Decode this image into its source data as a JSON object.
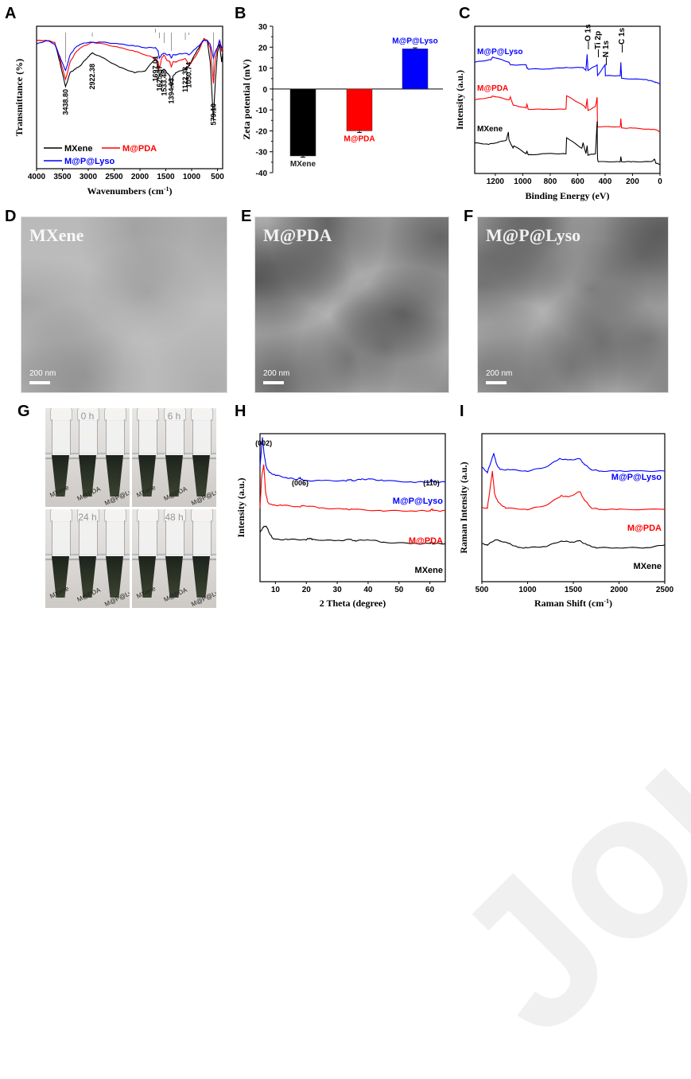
{
  "figure": {
    "panel_labels": [
      "A",
      "B",
      "C",
      "D",
      "E",
      "F",
      "G",
      "H",
      "I"
    ],
    "watermark": "Journal Pre-proof",
    "colors": {
      "MXene": "#000000",
      "M@PDA": "#ff0000",
      "M@P@Lyso": "#0000ff"
    }
  },
  "chart_data": [
    {
      "panel": "A",
      "type": "line",
      "title": "",
      "xlabel": "Wavenumbers (cm-1)",
      "xlabel_main": "Wavenumbers (cm",
      "xlabel_sup": "-1",
      "xlabel_end": ")",
      "ylabel": "Transmittance (%)",
      "xlim": [
        4000,
        400
      ],
      "xticks": [
        "4000",
        "3500",
        "3000",
        "2500",
        "2000",
        "1500",
        "1000",
        "500"
      ],
      "legend": [
        "MXene",
        "M@PDA",
        "M@P@Lyso"
      ],
      "legend_placement": "bottom-left",
      "annotations": [
        "3438.80",
        "2922.38",
        "1697.01",
        "1625.37",
        "1533.48",
        "1394.03",
        "1122.38",
        "1050.74",
        "579.10"
      ],
      "annotation_x": [
        3438.8,
        2922.38,
        1697.01,
        1625.37,
        1533.48,
        1394.03,
        1122.38,
        1050.74,
        579.1
      ],
      "series": [
        {
          "name": "MXene",
          "x": [
            4000,
            3800,
            3650,
            3550,
            3440,
            3350,
            3250,
            3150,
            3000,
            2922,
            2700,
            2400,
            2100,
            1900,
            1697,
            1650,
            1625,
            1580,
            1533,
            1480,
            1420,
            1394,
            1360,
            1300,
            1122,
            1050,
            900,
            760,
            700,
            640,
            579,
            540,
            500,
            460,
            420,
            400
          ],
          "y": [
            92,
            92,
            91,
            80,
            66,
            74,
            76,
            78,
            83,
            85,
            82,
            77,
            74,
            75,
            82,
            78,
            72,
            75,
            76,
            74,
            72,
            65,
            72,
            74,
            76,
            78,
            86,
            93,
            92,
            80,
            47,
            70,
            85,
            90,
            80,
            85
          ]
        },
        {
          "name": "M@PDA",
          "x": [
            4000,
            3800,
            3650,
            3550,
            3440,
            3350,
            3250,
            3150,
            3000,
            2922,
            2700,
            2400,
            2100,
            1900,
            1697,
            1650,
            1625,
            1580,
            1533,
            1480,
            1420,
            1394,
            1360,
            1300,
            1122,
            1050,
            900,
            760,
            700,
            640,
            579,
            540,
            500,
            460,
            420,
            400
          ],
          "y": [
            92,
            92,
            91,
            82,
            70,
            80,
            85,
            88,
            90,
            91,
            90,
            88,
            86,
            84,
            82,
            80,
            76,
            82,
            84,
            81,
            80,
            77,
            80,
            80,
            82,
            78,
            84,
            93,
            92,
            88,
            68,
            82,
            88,
            92,
            86,
            88
          ]
        },
        {
          "name": "M@P@Lyso",
          "x": [
            4000,
            3800,
            3650,
            3550,
            3440,
            3350,
            3250,
            3150,
            3000,
            2922,
            2700,
            2400,
            2100,
            1900,
            1697,
            1650,
            1625,
            1580,
            1533,
            1480,
            1420,
            1394,
            1360,
            1300,
            1122,
            1050,
            900,
            760,
            700,
            640,
            579,
            540,
            500,
            460,
            420,
            400
          ],
          "y": [
            90,
            92,
            90,
            83,
            75,
            84,
            88,
            90,
            91,
            91,
            91,
            90,
            89,
            88,
            88,
            86,
            82,
            84,
            85,
            84,
            84,
            82,
            84,
            84,
            85,
            84,
            88,
            92,
            92,
            90,
            82,
            86,
            88,
            92,
            88,
            88
          ]
        }
      ]
    },
    {
      "panel": "B",
      "type": "bar",
      "title": "",
      "xlabel": "",
      "ylabel": "Zeta potential (mV)",
      "ylim": [
        -40,
        30
      ],
      "yticks": [
        "30",
        "20",
        "10",
        "0",
        "-10",
        "-20",
        "-30",
        "-40"
      ],
      "categories": [
        "MXene",
        "M@PDA",
        "M@P@Lyso"
      ],
      "values": [
        -32.0,
        -20.0,
        19.2
      ],
      "errors": [
        0.6,
        0.8,
        0.5
      ],
      "bar_colors": [
        "#000000",
        "#ff0000",
        "#0000ff"
      ]
    },
    {
      "panel": "C",
      "type": "line",
      "title": "",
      "xlabel": "Binding Energy (eV)",
      "ylabel": "Intensity (a.u.)",
      "xlim": [
        1350,
        0
      ],
      "xticks": [
        "1200",
        "1000",
        "800",
        "600",
        "400",
        "200",
        "0"
      ],
      "peak_labels": [
        "O 1s",
        "Ti 2p",
        "N 1s",
        "C 1s"
      ],
      "peak_x": [
        531,
        458,
        400,
        285
      ],
      "series_labels": [
        "M@P@Lyso",
        "M@PDA",
        "MXene"
      ],
      "series": [
        {
          "name": "M@P@Lyso",
          "x": [
            1350,
            1230,
            1220,
            1100,
            1090,
            975,
            970,
            960,
            830,
            685,
            560,
            540,
            531,
            525,
            458,
            455,
            400,
            398,
            290,
            285,
            280,
            100,
            60,
            30,
            0
          ],
          "y": [
            78,
            80,
            82,
            78,
            76,
            76,
            74,
            73,
            73,
            74,
            74,
            72,
            84,
            72,
            76,
            68,
            76,
            68,
            68,
            78,
            66,
            65,
            64,
            63,
            62
          ]
        },
        {
          "name": "M@PDA",
          "x": [
            1350,
            1230,
            1220,
            1100,
            1090,
            1070,
            975,
            970,
            960,
            830,
            685,
            680,
            560,
            540,
            531,
            525,
            470,
            458,
            455,
            290,
            285,
            280,
            200,
            60,
            30,
            0
          ],
          "y": [
            50,
            52,
            53,
            50,
            52,
            46,
            44,
            47,
            43,
            43,
            43,
            53,
            46,
            44,
            51,
            42,
            45,
            52,
            30,
            30,
            36,
            29,
            29,
            28,
            28,
            26
          ],
          "note": "offset series"
        },
        {
          "name": "MXene",
          "x": [
            1350,
            1250,
            1200,
            1120,
            1105,
            1100,
            1070,
            1065,
            975,
            970,
            960,
            830,
            685,
            680,
            570,
            560,
            540,
            531,
            525,
            470,
            458,
            455,
            450,
            290,
            285,
            280,
            200,
            60,
            40,
            30,
            0
          ],
          "y": [
            18,
            17,
            18,
            20,
            26,
            20,
            14,
            16,
            10,
            12,
            9,
            10,
            10,
            22,
            14,
            18,
            10,
            16,
            9,
            10,
            34,
            6,
            4,
            4,
            8,
            4,
            4,
            4,
            6,
            3,
            2
          ]
        }
      ]
    },
    {
      "panel": "H",
      "type": "line",
      "title": "",
      "xlabel": "2 Theta (degree)",
      "ylabel": "Intensity (a.u.)",
      "xlim": [
        5,
        65
      ],
      "xticks": [
        "10",
        "20",
        "30",
        "40",
        "50",
        "60"
      ],
      "peak_labels": [
        "(002)",
        "(006)",
        "(110)"
      ],
      "peak_x": [
        5.8,
        18,
        60.5
      ],
      "series_labels": [
        "M@P@Lyso",
        "M@PDA",
        "MXene"
      ],
      "series": [
        {
          "name": "M@P@Lyso",
          "x": [
            5,
            5.5,
            5.8,
            6.3,
            7,
            8,
            10,
            14,
            17,
            18,
            19,
            25,
            33,
            34,
            35,
            38,
            41,
            45,
            55,
            60,
            60.5,
            61,
            65
          ],
          "y": [
            78,
            92,
            100,
            88,
            78,
            74,
            72,
            70,
            69,
            70,
            68,
            68,
            68,
            69,
            68,
            69,
            69,
            68,
            67,
            67,
            69,
            67,
            67
          ]
        },
        {
          "name": "M@PDA",
          "x": [
            5,
            5.5,
            6.2,
            6.8,
            7.5,
            9,
            12,
            18,
            19,
            25,
            33,
            35,
            45,
            55,
            60,
            60.7,
            61.5,
            65
          ],
          "y": [
            48,
            70,
            80,
            60,
            52,
            50,
            50,
            49,
            50,
            48,
            47,
            47,
            46,
            46,
            46,
            47,
            46,
            46
          ]
        },
        {
          "name": "MXene",
          "x": [
            5,
            6,
            7,
            8,
            9,
            10,
            14,
            20,
            21,
            22,
            30,
            34,
            36,
            40,
            45,
            55,
            60,
            60.5,
            61,
            65
          ],
          "y": [
            30,
            34,
            35,
            30,
            26,
            25,
            25,
            25,
            26,
            25,
            24,
            25,
            24,
            25,
            23,
            22,
            22,
            23,
            22,
            22
          ]
        }
      ]
    },
    {
      "panel": "I",
      "type": "line",
      "title": "",
      "xlabel": "Raman Shift (cm-1)",
      "xlabel_main": "Raman Shift (cm",
      "xlabel_sup": "-1",
      "xlabel_end": ")",
      "ylabel": "Raman Intensity (a.u.)",
      "xlim": [
        500,
        2500
      ],
      "xticks": [
        "500",
        "1000",
        "1500",
        "2000",
        "2500"
      ],
      "series_labels": [
        "M@P@Lyso",
        "M@PDA",
        "MXene"
      ],
      "series": [
        {
          "name": "M@P@Lyso",
          "x": [
            500,
            560,
            600,
            630,
            660,
            700,
            800,
            1000,
            1200,
            1350,
            1450,
            1570,
            1620,
            1700,
            1800,
            2000,
            2200,
            2500
          ],
          "y": [
            78,
            74,
            82,
            88,
            80,
            76,
            76,
            75,
            78,
            84,
            83,
            84,
            80,
            76,
            75,
            75,
            75,
            75
          ]
        },
        {
          "name": "M@PDA",
          "x": [
            500,
            560,
            585,
            615,
            640,
            680,
            760,
            1000,
            1200,
            1370,
            1450,
            1570,
            1620,
            1700,
            1800,
            2000,
            2500
          ],
          "y": [
            48,
            48,
            60,
            75,
            58,
            52,
            48,
            47,
            50,
            57,
            56,
            60,
            54,
            48,
            47,
            47,
            47
          ]
        },
        {
          "name": "MXene",
          "x": [
            500,
            560,
            650,
            700,
            800,
            900,
            1000,
            1200,
            1370,
            1480,
            1570,
            1650,
            1750,
            2000,
            2300,
            2500
          ],
          "y": [
            22,
            21,
            25,
            24,
            22,
            19,
            19,
            20,
            24,
            23,
            24,
            21,
            19,
            19,
            19,
            21
          ]
        }
      ]
    }
  ],
  "tem_images": [
    {
      "panel": "D",
      "title": "MXene",
      "scale": "200 nm"
    },
    {
      "panel": "E",
      "title": "M@PDA",
      "scale": "200 nm"
    },
    {
      "panel": "F",
      "title": "M@P@Lyso",
      "scale": "200 nm"
    }
  ],
  "photos": {
    "panel": "G",
    "frames": [
      {
        "time": "0 h"
      },
      {
        "time": "6 h"
      },
      {
        "time": "24 h"
      },
      {
        "time": "48 h"
      }
    ],
    "tube_labels": [
      "MXene",
      "M@PDA",
      "M@P@Lyso"
    ]
  }
}
